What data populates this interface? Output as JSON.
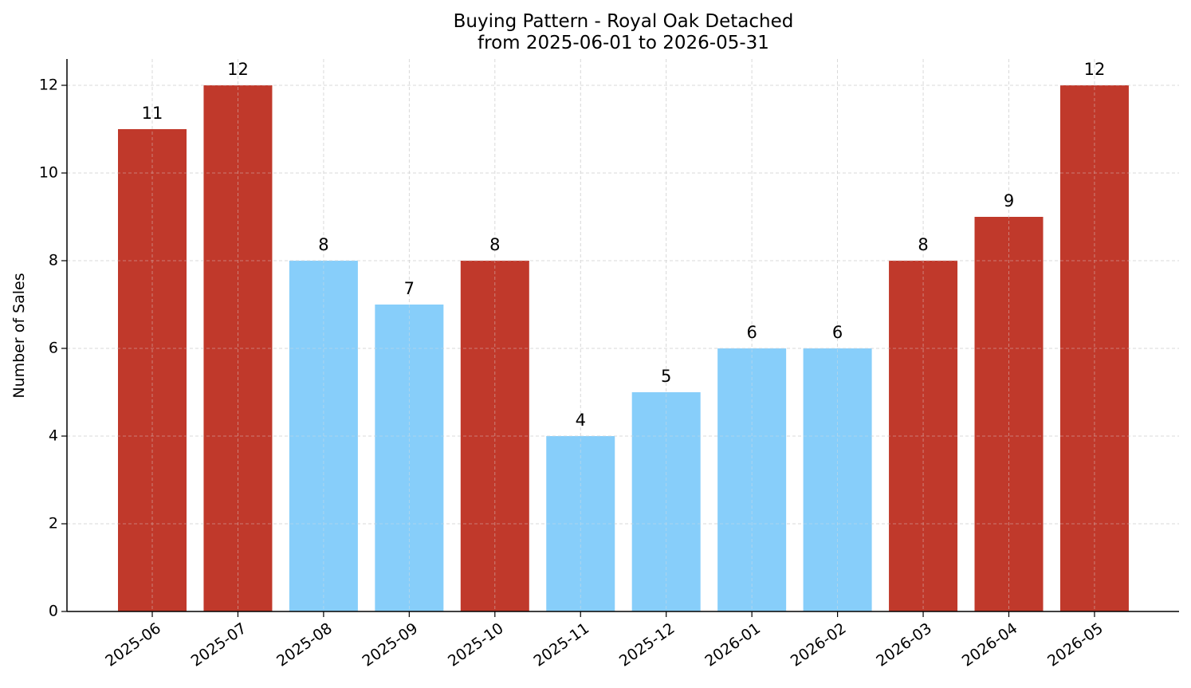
{
  "chart_data": {
    "type": "bar",
    "title": "Buying Pattern - Royal Oak Detached",
    "subtitle": "from 2025-06-01 to 2026-05-31",
    "xlabel": "",
    "ylabel": "Number of Sales",
    "categories": [
      "2025-06",
      "2025-07",
      "2025-08",
      "2025-09",
      "2025-10",
      "2025-11",
      "2025-12",
      "2026-01",
      "2026-02",
      "2026-03",
      "2026-04",
      "2026-05"
    ],
    "values": [
      11,
      12,
      8,
      7,
      8,
      4,
      5,
      6,
      6,
      8,
      9,
      12
    ],
    "data_labels": [
      "11",
      "12",
      "8",
      "7",
      "8",
      "4",
      "5",
      "6",
      "6",
      "8",
      "9",
      "12"
    ],
    "ylim": [
      0,
      12.6
    ],
    "yticks": [
      0,
      2,
      4,
      6,
      8,
      10,
      12
    ],
    "grid": true,
    "bar_colors": [
      "#c0392b",
      "#c0392b",
      "#87cefa",
      "#87cefa",
      "#c0392b",
      "#87cefa",
      "#87cefa",
      "#87cefa",
      "#87cefa",
      "#c0392b",
      "#c0392b",
      "#c0392b"
    ]
  }
}
